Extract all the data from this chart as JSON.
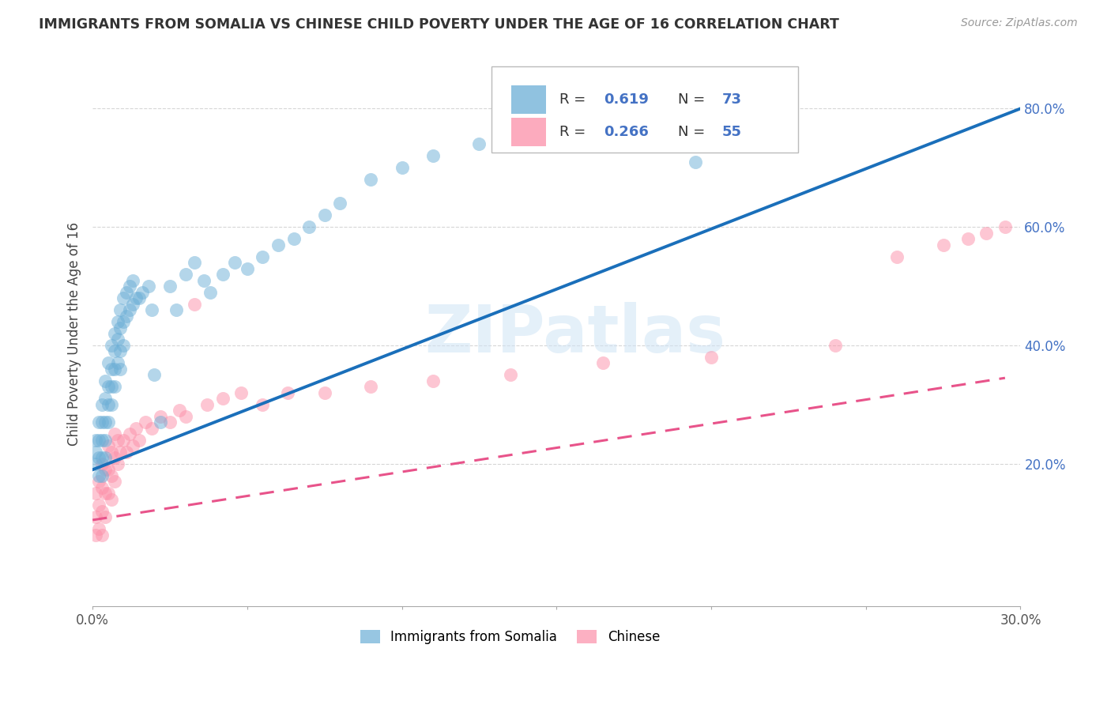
{
  "title": "IMMIGRANTS FROM SOMALIA VS CHINESE CHILD POVERTY UNDER THE AGE OF 16 CORRELATION CHART",
  "source_text": "Source: ZipAtlas.com",
  "ylabel": "Child Poverty Under the Age of 16",
  "xlim": [
    0.0,
    0.3
  ],
  "ylim": [
    -0.04,
    0.88
  ],
  "x_ticks": [
    0.0,
    0.05,
    0.1,
    0.15,
    0.2,
    0.25,
    0.3
  ],
  "x_tick_labels": [
    "0.0%",
    "",
    "",
    "",
    "",
    "",
    "30.0%"
  ],
  "y_ticks": [
    0.2,
    0.4,
    0.6,
    0.8
  ],
  "y_tick_labels": [
    "20.0%",
    "40.0%",
    "60.0%",
    "80.0%"
  ],
  "watermark": "ZIPatlas",
  "blue_color": "#6baed6",
  "pink_color": "#fc8fa8",
  "blue_line_color": "#1a6fba",
  "pink_line_color": "#e8538a",
  "background_color": "#ffffff",
  "legend_text_color": "#4472c4",
  "somalia_R": "0.619",
  "somalia_N": "73",
  "chinese_R": "0.266",
  "chinese_N": "55",
  "blue_line_x": [
    0.0,
    0.3
  ],
  "blue_line_y": [
    0.19,
    0.8
  ],
  "pink_line_x": [
    0.0,
    0.295
  ],
  "pink_line_y": [
    0.105,
    0.345
  ],
  "somalia_x": [
    0.001,
    0.001,
    0.001,
    0.002,
    0.002,
    0.002,
    0.002,
    0.003,
    0.003,
    0.003,
    0.003,
    0.003,
    0.004,
    0.004,
    0.004,
    0.004,
    0.004,
    0.005,
    0.005,
    0.005,
    0.005,
    0.006,
    0.006,
    0.006,
    0.006,
    0.007,
    0.007,
    0.007,
    0.007,
    0.008,
    0.008,
    0.008,
    0.009,
    0.009,
    0.009,
    0.009,
    0.01,
    0.01,
    0.01,
    0.011,
    0.011,
    0.012,
    0.012,
    0.013,
    0.013,
    0.014,
    0.015,
    0.016,
    0.018,
    0.019,
    0.02,
    0.022,
    0.025,
    0.027,
    0.03,
    0.033,
    0.036,
    0.038,
    0.042,
    0.046,
    0.05,
    0.055,
    0.06,
    0.065,
    0.07,
    0.075,
    0.08,
    0.09,
    0.1,
    0.11,
    0.125,
    0.14,
    0.195
  ],
  "somalia_y": [
    0.22,
    0.24,
    0.2,
    0.27,
    0.24,
    0.21,
    0.18,
    0.3,
    0.27,
    0.24,
    0.21,
    0.18,
    0.34,
    0.31,
    0.27,
    0.24,
    0.21,
    0.37,
    0.33,
    0.3,
    0.27,
    0.4,
    0.36,
    0.33,
    0.3,
    0.42,
    0.39,
    0.36,
    0.33,
    0.44,
    0.41,
    0.37,
    0.46,
    0.43,
    0.39,
    0.36,
    0.48,
    0.44,
    0.4,
    0.49,
    0.45,
    0.5,
    0.46,
    0.51,
    0.47,
    0.48,
    0.48,
    0.49,
    0.5,
    0.46,
    0.35,
    0.27,
    0.5,
    0.46,
    0.52,
    0.54,
    0.51,
    0.49,
    0.52,
    0.54,
    0.53,
    0.55,
    0.57,
    0.58,
    0.6,
    0.62,
    0.64,
    0.68,
    0.7,
    0.72,
    0.74,
    0.75,
    0.71
  ],
  "chinese_x": [
    0.001,
    0.001,
    0.001,
    0.002,
    0.002,
    0.002,
    0.003,
    0.003,
    0.003,
    0.003,
    0.004,
    0.004,
    0.004,
    0.005,
    0.005,
    0.005,
    0.006,
    0.006,
    0.006,
    0.007,
    0.007,
    0.007,
    0.008,
    0.008,
    0.009,
    0.01,
    0.011,
    0.012,
    0.013,
    0.014,
    0.015,
    0.017,
    0.019,
    0.022,
    0.025,
    0.028,
    0.03,
    0.033,
    0.037,
    0.042,
    0.048,
    0.055,
    0.063,
    0.075,
    0.09,
    0.11,
    0.135,
    0.165,
    0.2,
    0.24,
    0.26,
    0.275,
    0.283,
    0.289,
    0.295
  ],
  "chinese_y": [
    0.15,
    0.11,
    0.08,
    0.17,
    0.13,
    0.09,
    0.2,
    0.16,
    0.12,
    0.08,
    0.19,
    0.15,
    0.11,
    0.23,
    0.19,
    0.15,
    0.22,
    0.18,
    0.14,
    0.25,
    0.21,
    0.17,
    0.24,
    0.2,
    0.22,
    0.24,
    0.22,
    0.25,
    0.23,
    0.26,
    0.24,
    0.27,
    0.26,
    0.28,
    0.27,
    0.29,
    0.28,
    0.47,
    0.3,
    0.31,
    0.32,
    0.3,
    0.32,
    0.32,
    0.33,
    0.34,
    0.35,
    0.37,
    0.38,
    0.4,
    0.55,
    0.57,
    0.58,
    0.59,
    0.6
  ]
}
